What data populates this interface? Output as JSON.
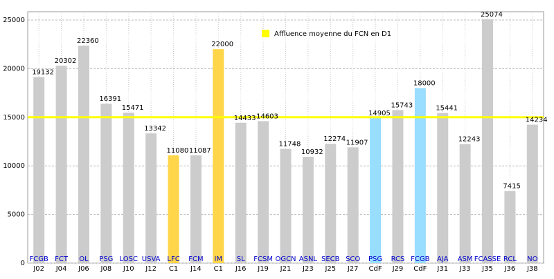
{
  "chart_data": {
    "type": "bar",
    "categories": [
      "FCGB",
      "FCT",
      "OL",
      "PSG",
      "LOSC",
      "USVA",
      "LFC",
      "FCM",
      "IM",
      "SL",
      "FCSM",
      "OGCN",
      "ASNL",
      "SECB",
      "SCO",
      "PSG",
      "RCS",
      "FCGB",
      "AJA",
      "ASM",
      "FCASSE",
      "RCL",
      "NO"
    ],
    "rounds": [
      "J02",
      "J04",
      "J06",
      "J08",
      "J10",
      "J12",
      "C1",
      "J14",
      "C1",
      "J16",
      "J19",
      "J21",
      "J23",
      "J25",
      "J27",
      "CdF",
      "J29",
      "CdF",
      "J31",
      "J33",
      "J35",
      "J36",
      "J38"
    ],
    "values": [
      19132,
      20302,
      22360,
      16391,
      15471,
      13342,
      11080,
      11087,
      22000,
      14433,
      14603,
      11748,
      10932,
      12274,
      11907,
      14905,
      15743,
      18000,
      15441,
      12243,
      25074,
      7415,
      14234
    ],
    "colors": [
      "#cccccc",
      "#cccccc",
      "#cccccc",
      "#cccccc",
      "#cccccc",
      "#cccccc",
      "#ffd54a",
      "#cccccc",
      "#ffd54a",
      "#cccccc",
      "#cccccc",
      "#cccccc",
      "#cccccc",
      "#cccccc",
      "#cccccc",
      "#99ddff",
      "#cccccc",
      "#99ddff",
      "#cccccc",
      "#cccccc",
      "#cccccc",
      "#cccccc",
      "#cccccc"
    ],
    "reference_line": {
      "value": 15000,
      "label": "Affluence moyenne du FCN en D1",
      "color": "#ffff00"
    },
    "ylim": [
      0,
      25850
    ],
    "yticks": [
      0,
      5000,
      10000,
      15000,
      20000,
      25000
    ],
    "grid": true
  }
}
